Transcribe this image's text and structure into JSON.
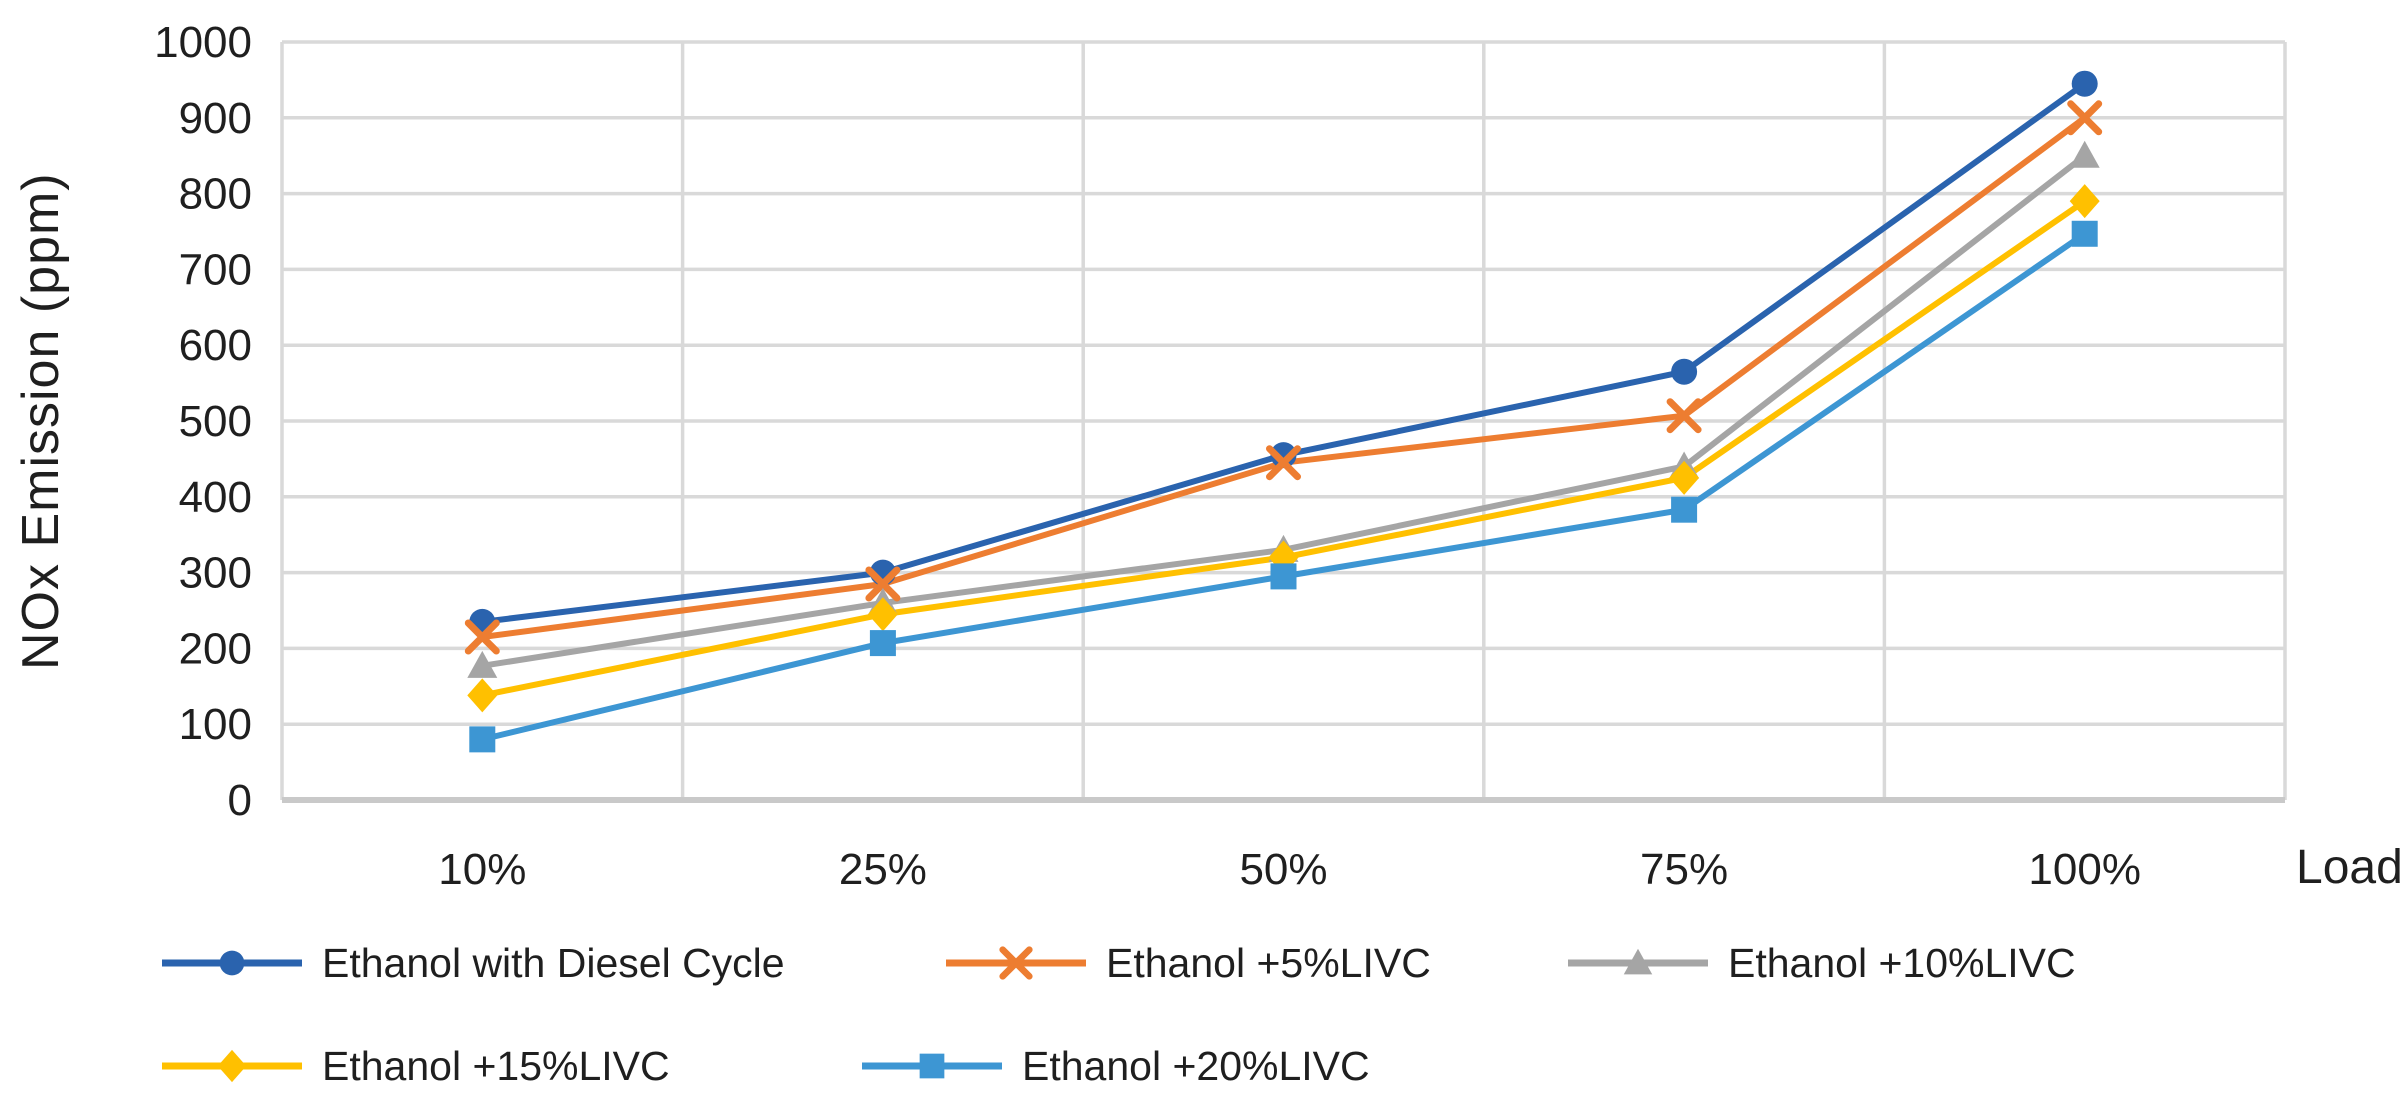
{
  "chart_data": {
    "type": "line",
    "title": "",
    "xlabel": "Load",
    "ylabel": "NOx Emission (ppm)",
    "ylim": [
      0,
      1000
    ],
    "y_tick_step": 100,
    "y_ticks": [
      "0",
      "100",
      "200",
      "300",
      "400",
      "500",
      "600",
      "700",
      "800",
      "900",
      "1000"
    ],
    "categories": [
      "10%",
      "25%",
      "50%",
      "75%",
      "100%"
    ],
    "grid": "horizontal and vertical light-gray gridlines with outer frame",
    "legend_position": "bottom-left, two rows",
    "series": [
      {
        "name": "Ethanol with Diesel Cycle",
        "color": "#2A63AE",
        "marker": "circle",
        "values": [
          235,
          300,
          455,
          565,
          945
        ]
      },
      {
        "name": "Ethanol +5%LIVC",
        "color": "#ED7D31",
        "marker": "x",
        "values": [
          215,
          285,
          445,
          507,
          900
        ]
      },
      {
        "name": "Ethanol +10%LIVC",
        "color": "#A5A5A5",
        "marker": "triangle",
        "values": [
          177,
          260,
          330,
          440,
          850
        ]
      },
      {
        "name": "Ethanol +15%LIVC",
        "color": "#FFC000",
        "marker": "diamond",
        "values": [
          138,
          245,
          320,
          425,
          790
        ]
      },
      {
        "name": "Ethanol +20%LIVC",
        "color": "#3D96D3",
        "marker": "square",
        "values": [
          80,
          207,
          295,
          383,
          747
        ]
      }
    ]
  },
  "colors": {
    "gridline": "#D9D9D9",
    "axis_frame": "#C9C9C9",
    "text": "#1F1F1F"
  }
}
